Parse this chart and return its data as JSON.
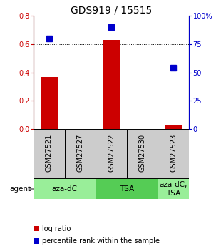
{
  "title": "GDS919 / 15515",
  "samples": [
    "GSM27521",
    "GSM27527",
    "GSM27522",
    "GSM27530",
    "GSM27523"
  ],
  "log_ratio": [
    0.37,
    0.0,
    0.63,
    0.0,
    0.03
  ],
  "percentile_rank": [
    80,
    null,
    90,
    null,
    54
  ],
  "bar_color": "#cc0000",
  "dot_color": "#0000cc",
  "ylim_left": [
    0,
    0.8
  ],
  "ylim_right": [
    0,
    100
  ],
  "yticks_left": [
    0,
    0.2,
    0.4,
    0.6,
    0.8
  ],
  "yticks_right": [
    0,
    25,
    50,
    75,
    100
  ],
  "ytick_labels_right": [
    "0",
    "25",
    "50",
    "75",
    "100%"
  ],
  "agent_groups": [
    {
      "label": "aza-dC",
      "start": 0,
      "end": 1,
      "color": "#99ee99"
    },
    {
      "label": "TSA",
      "start": 2,
      "end": 3,
      "color": "#55cc55"
    },
    {
      "label": "aza-dC,\nTSA",
      "start": 4,
      "end": 4,
      "color": "#99ee99"
    }
  ],
  "agent_label": "agent",
  "legend_items": [
    {
      "color": "#cc0000",
      "label": "log ratio"
    },
    {
      "color": "#0000cc",
      "label": "percentile rank within the sample"
    }
  ],
  "bar_width": 0.55,
  "dot_size": 6,
  "sample_box_color": "#cccccc",
  "title_fontsize": 10,
  "tick_fontsize": 7,
  "agent_fontsize": 7.5,
  "sample_label_fontsize": 7,
  "legend_fontsize": 7
}
